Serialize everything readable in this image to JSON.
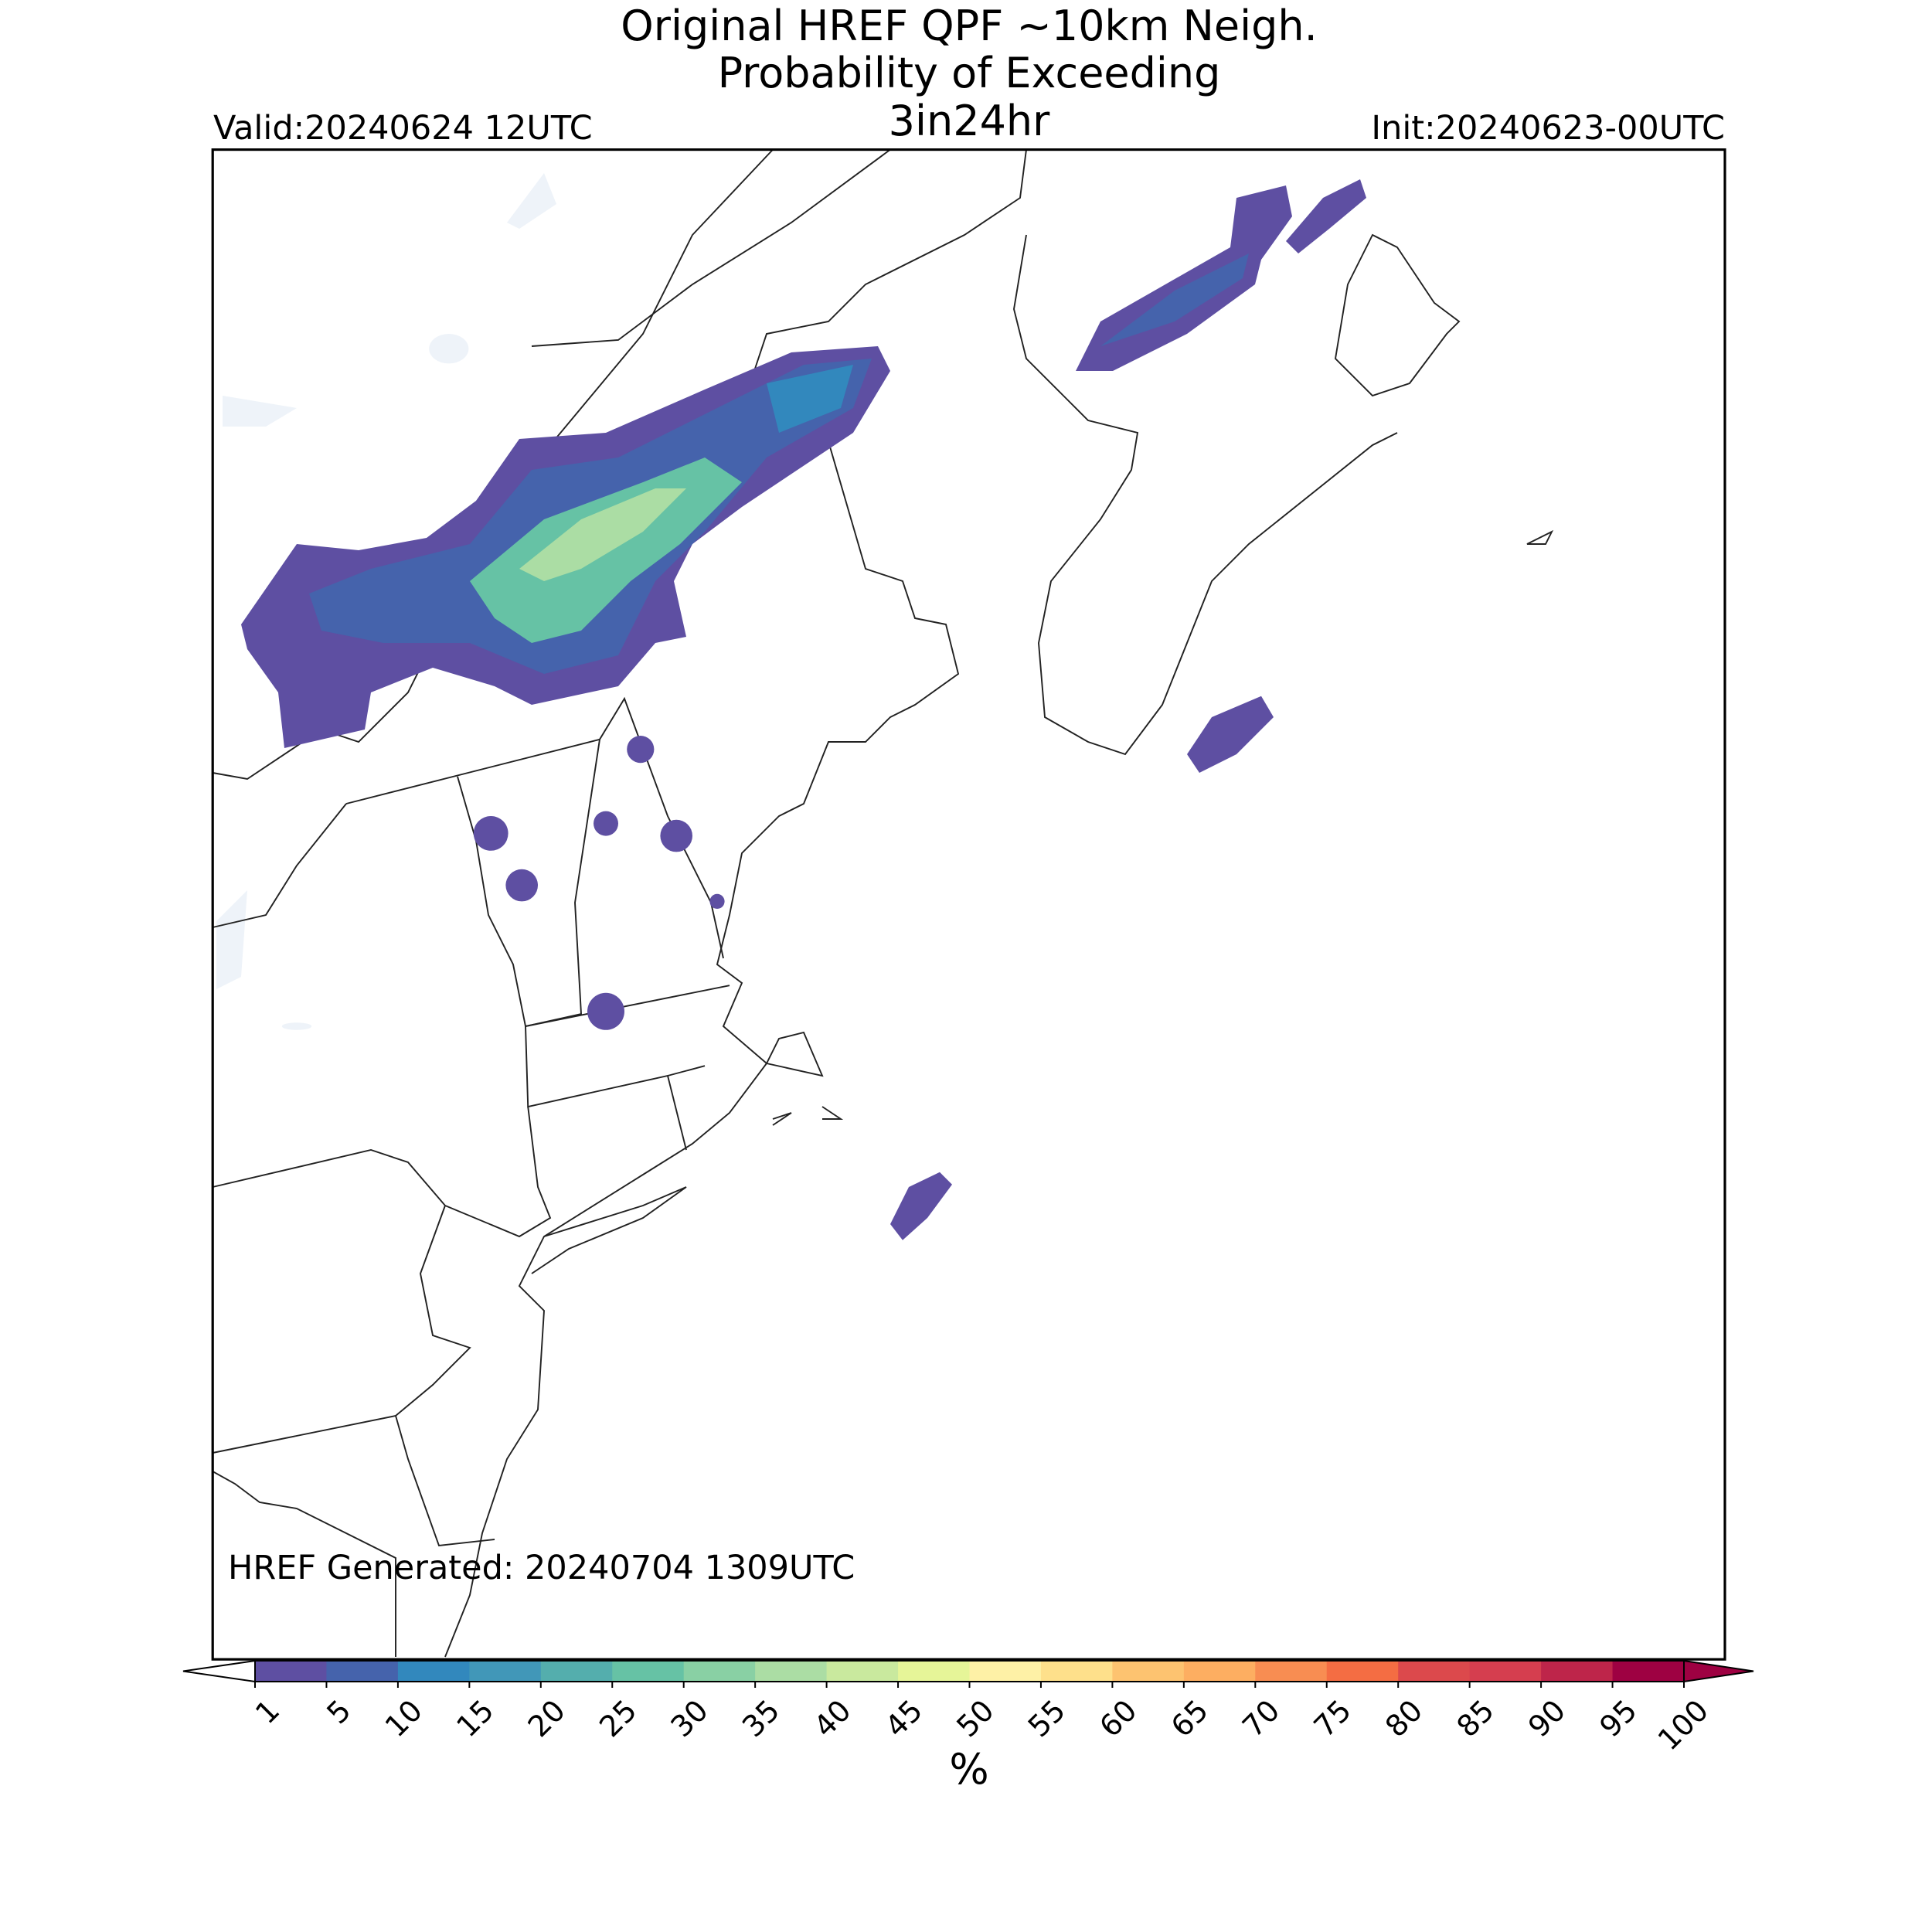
{
  "map": {
    "title": [
      "Original HREF QPF ~10km Neigh.",
      "Probability of Exceeding",
      "3in24hr"
    ],
    "valid": "Valid:20240624 12UTC",
    "init": "Init:20240623-00UTC",
    "generated": "HREF Generated: 20240704 1309UTC",
    "colorbar": {
      "label": "%",
      "ticks": [
        1,
        5,
        10,
        15,
        20,
        25,
        30,
        35,
        40,
        45,
        50,
        55,
        60,
        65,
        70,
        75,
        80,
        85,
        90,
        95,
        100
      ],
      "colors": [
        "#5e4fa2",
        "#4563ac",
        "#3288bd",
        "#4197b8",
        "#54aead",
        "#66c2a5",
        "#89d0a4",
        "#abdda4",
        "#c9e99e",
        "#e6f598",
        "#fef1a6",
        "#fee08b",
        "#fdc370",
        "#fdae61",
        "#f88d52",
        "#f46d43",
        "#dc494c",
        "#d53e4f",
        "#be254a",
        "#9e0142"
      ],
      "under_color": "#ffffff",
      "over_color": "#9e0142"
    }
  }
}
